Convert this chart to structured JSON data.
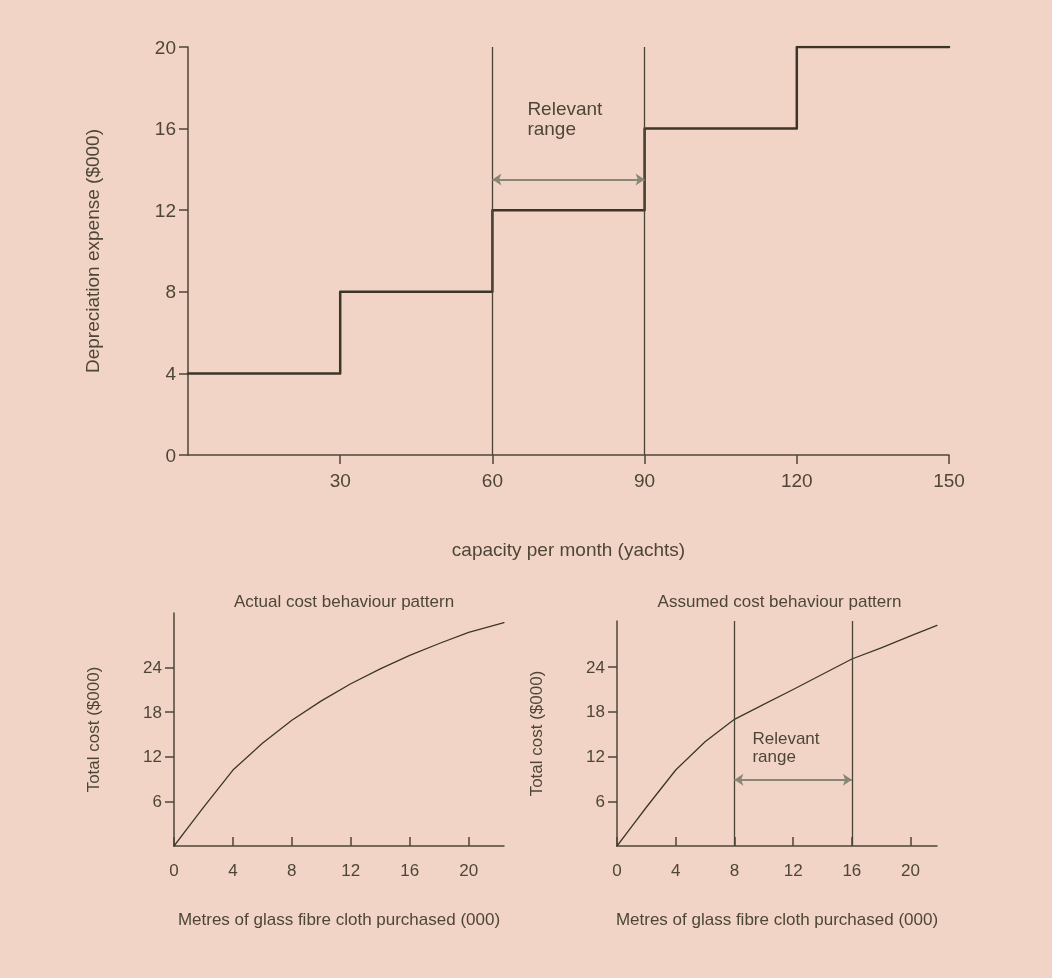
{
  "chart_data": [
    {
      "type": "step",
      "xlabel": "capacity per month (yachts)",
      "ylabel": "Depreciation expense ($000)",
      "x": [
        0,
        30,
        60,
        90,
        120,
        150
      ],
      "values": [
        4,
        8,
        12,
        16,
        20,
        20
      ],
      "color": "#3b3628",
      "marker": "none",
      "xlim": [
        0,
        150
      ],
      "xticks": [
        30,
        60,
        90,
        120,
        150
      ],
      "ylim": [
        0,
        20
      ],
      "yticks": [
        0,
        4,
        8,
        12,
        16,
        20
      ],
      "ref_lines": [
        {
          "axis": "x",
          "value": 60,
          "color": "#4a4436"
        },
        {
          "axis": "x",
          "value": 90,
          "color": "#4a4436"
        }
      ],
      "annotations": [
        "Relevant range"
      ]
    },
    {
      "type": "line",
      "title": "Actual cost behaviour pattern",
      "xlabel": "Metres of glass fibre cloth purchased (000)",
      "ylabel": "Total cost ($000)",
      "x": [
        0,
        1,
        2,
        4,
        6,
        8,
        10,
        12,
        14,
        16,
        18,
        20,
        22.4
      ],
      "values": [
        0,
        2.6,
        5.2,
        10.2,
        13.8,
        16.9,
        19.5,
        21.8,
        23.8,
        25.6,
        27.2,
        28.7,
        30.0
      ],
      "color": "#3b3628",
      "marker": "none",
      "xlim": [
        0,
        22.4
      ],
      "xticks": [
        0,
        4,
        8,
        12,
        16,
        20
      ],
      "ylim": [
        0,
        31.3
      ],
      "yticks": [
        6,
        12,
        18,
        24
      ]
    },
    {
      "type": "line",
      "title": "Assumed cost behaviour pattern",
      "xlabel": "Metres of glass fibre cloth purchased (000)",
      "ylabel": "Total cost ($000)",
      "x": [
        0,
        1,
        2,
        4,
        6,
        8,
        12,
        16,
        18,
        20,
        21.8
      ],
      "values": [
        0,
        2.6,
        5.2,
        10.2,
        14,
        17,
        21,
        25.1,
        26.6,
        28.2,
        29.6
      ],
      "color": "#3b3628",
      "marker": "none",
      "xlim": [
        0,
        21.8
      ],
      "xticks": [
        0,
        4,
        8,
        12,
        16,
        20
      ],
      "ylim": [
        0,
        30.2
      ],
      "yticks": [
        6,
        12,
        18,
        24
      ],
      "ref_lines": [
        {
          "axis": "x",
          "value": 8,
          "color": "#4a4436"
        },
        {
          "axis": "x",
          "value": 16,
          "color": "#4a4436"
        }
      ],
      "annotations": [
        "Relevant range"
      ]
    }
  ]
}
